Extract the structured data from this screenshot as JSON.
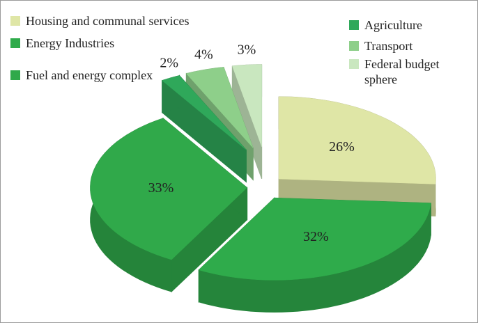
{
  "chart_data": {
    "type": "pie",
    "categories": [
      "Housing and communal services",
      "Energy Industries",
      "Fuel and energy complex",
      "Agriculture",
      "Transport",
      "Federal budget sphere"
    ],
    "values": [
      26,
      32,
      33,
      2,
      4,
      3
    ],
    "value_labels": [
      "26%",
      "32%",
      "33%",
      "2%",
      "4%",
      "3%"
    ],
    "colors": [
      "#dfe6a6",
      "#2fab4b",
      "#30a94a",
      "#2fa85a",
      "#8ecf8a",
      "#c9e7bf"
    ]
  }
}
